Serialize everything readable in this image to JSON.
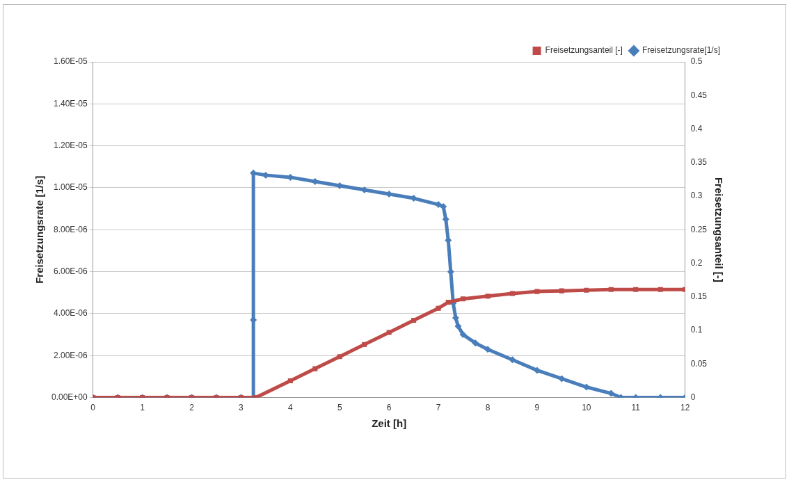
{
  "chart_data": {
    "type": "line",
    "xlabel": "Zeit [h]",
    "ylabel": "Freisetzungsrate [1/s]",
    "y2label": "Freisetzungsanteil [-]",
    "xlim": [
      0,
      12
    ],
    "xticks": [
      0,
      1,
      2,
      3,
      4,
      5,
      6,
      7,
      8,
      9,
      10,
      11,
      12
    ],
    "ylim": [
      0,
      1.6e-05
    ],
    "yticks": [
      {
        "value": 0,
        "label": "0.00E+00"
      },
      {
        "value": 2e-06,
        "label": "2.00E-06"
      },
      {
        "value": 4e-06,
        "label": "4.00E-06"
      },
      {
        "value": 6e-06,
        "label": "6.00E-06"
      },
      {
        "value": 8e-06,
        "label": "8.00E-06"
      },
      {
        "value": 1e-05,
        "label": "1.00E-05"
      },
      {
        "value": 1.2e-05,
        "label": "1.20E-05"
      },
      {
        "value": 1.4e-05,
        "label": "1.40E-05"
      },
      {
        "value": 1.6e-05,
        "label": "1.60E-05"
      }
    ],
    "y2lim": [
      0,
      0.5
    ],
    "y2ticks": [
      0,
      0.05,
      0.1,
      0.15,
      0.2,
      0.25,
      0.3,
      0.35,
      0.4,
      0.45,
      0.5
    ],
    "grid": "y",
    "legend": "top right",
    "line_style": "solid",
    "series": [
      {
        "name": "Freisetzungsrate[1/s]",
        "color": "#4a7ebb",
        "marker": "diamond",
        "x": [
          0,
          0.5,
          1,
          1.5,
          2,
          2.5,
          3,
          3.25,
          3.25,
          3.25,
          3.5,
          4,
          4.5,
          5,
          5.5,
          6,
          6.5,
          7,
          7.1,
          7.15,
          7.2,
          7.25,
          7.3,
          7.35,
          7.4,
          7.5,
          7.75,
          8,
          8.5,
          9,
          9.5,
          10,
          10.5,
          10.7,
          11,
          11.5,
          12
        ],
        "values": [
          0,
          0,
          0,
          0,
          0,
          0,
          0,
          0,
          3.7e-06,
          1.07e-05,
          1.06e-05,
          1.05e-05,
          1.03e-05,
          1.01e-05,
          9.9e-06,
          9.7e-06,
          9.5e-06,
          9.2e-06,
          9.1e-06,
          8.5e-06,
          7.5e-06,
          6e-06,
          4.5e-06,
          3.8e-06,
          3.4e-06,
          3e-06,
          2.6e-06,
          2.3e-06,
          1.8e-06,
          1.3e-06,
          9e-07,
          5e-07,
          2e-07,
          0,
          0,
          0,
          0
        ]
      },
      {
        "name": "Freisetzungsanteil [-]",
        "color": "#be4b48",
        "marker": "square",
        "axis": "y2",
        "x": [
          0,
          0.5,
          1,
          1.5,
          2,
          2.5,
          3,
          3.3,
          4,
          4.5,
          5,
          5.5,
          6,
          6.5,
          7,
          7.2,
          7.5,
          8,
          8.5,
          9,
          9.5,
          10,
          10.5,
          11,
          11.5,
          12
        ],
        "values": [
          0,
          0,
          0,
          0,
          0,
          0,
          0,
          0,
          0.025,
          0.043,
          0.061,
          0.079,
          0.097,
          0.115,
          0.133,
          0.142,
          0.147,
          0.151,
          0.155,
          0.158,
          0.159,
          0.16,
          0.161,
          0.161,
          0.161,
          0.161
        ]
      }
    ]
  }
}
